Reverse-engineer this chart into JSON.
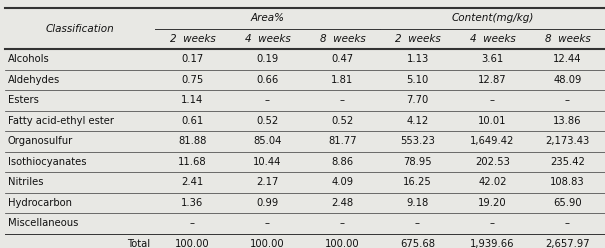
{
  "header_row1_labels": [
    "Classification",
    "Area%",
    "Content(mg/kg)"
  ],
  "header_row2_labels": [
    "2  weeks",
    "4  weeks",
    "8  weeks",
    "2  weeks",
    "4  weeks",
    "8  weeks"
  ],
  "rows": [
    [
      "Alcohols",
      "0.17",
      "0.19",
      "0.47",
      "1.13",
      "3.61",
      "12.44"
    ],
    [
      "Aldehydes",
      "0.75",
      "0.66",
      "1.81",
      "5.10",
      "12.87",
      "48.09"
    ],
    [
      "Esters",
      "1.14",
      "–",
      "–",
      "7.70",
      "–",
      "–"
    ],
    [
      "Fatty acid-ethyl ester",
      "0.61",
      "0.52",
      "0.52",
      "4.12",
      "10.01",
      "13.86"
    ],
    [
      "Organosulfur",
      "81.88",
      "85.04",
      "81.77",
      "553.23",
      "1,649.42",
      "2,173.43"
    ],
    [
      "Isothiocyanates",
      "11.68",
      "10.44",
      "8.86",
      "78.95",
      "202.53",
      "235.42"
    ],
    [
      "Nitriles",
      "2.41",
      "2.17",
      "4.09",
      "16.25",
      "42.02",
      "108.83"
    ],
    [
      "Hydrocarbon",
      "1.36",
      "0.99",
      "2.48",
      "9.18",
      "19.20",
      "65.90"
    ],
    [
      "Miscellaneous",
      "–",
      "–",
      "–",
      "–",
      "–",
      "–"
    ]
  ],
  "total_row": [
    "Total",
    "100.00",
    "100.00",
    "100.00",
    "675.68",
    "1,939.66",
    "2,657.97"
  ],
  "background_color": "#e8e8e4",
  "line_color": "#333333",
  "text_color": "#111111",
  "font_size": 7.2,
  "header_font_size": 7.5
}
